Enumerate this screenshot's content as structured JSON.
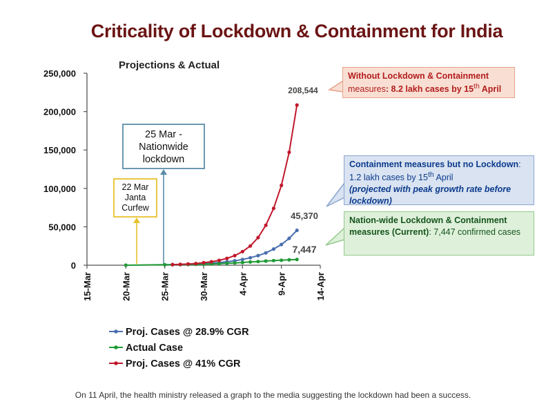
{
  "title": "Criticality of Lockdown & Containment for India",
  "caption": "On 11 April, the health ministry released a graph to the media suggesting the lockdown had been a success.",
  "colors": {
    "title": "#6b1414",
    "blue": "#4a6fb0",
    "green": "#1f9a35",
    "red": "#c0182b",
    "event_yellow": "#e6c22c",
    "event_blue": "#5a8ca8"
  },
  "events": [
    {
      "date_index": 7,
      "lines": [
        "22 Mar",
        "Janta",
        "Curfew"
      ]
    },
    {
      "date_index": 10,
      "lines": [
        "25 Mar -",
        "Nationwide",
        "lockdown"
      ]
    }
  ],
  "callouts": {
    "red": {
      "bold": "Without Lockdown & Containment",
      "text_a": "measures",
      "text_b": ": 8.2 lakh cases by 15",
      "sup": "th",
      "text_c": " April"
    },
    "blue": {
      "bold": "Containment measures but no Lockdown",
      "text_a": ": 1.2 lakh cases by 15",
      "sup": "th",
      "text_b": " April",
      "italic": "(projected with peak growth rate before lockdown)"
    },
    "green": {
      "bold": "Nation-wide Lockdown & Containment measures (Current)",
      "text_a": ": 7,447 confirmed cases"
    }
  },
  "chart_data": {
    "type": "line",
    "title": "Projections & Actual",
    "xlabel": "",
    "ylabel": "",
    "ylim": [
      0,
      250000
    ],
    "yticks": [
      0,
      50000,
      100000,
      150000,
      200000,
      250000
    ],
    "ytick_labels": [
      "0",
      "50,000",
      "100,000",
      "150,000",
      "200,000",
      "250,000"
    ],
    "xlim": [
      0,
      30
    ],
    "xtick_labels": [
      "15-Mar",
      "20-Mar",
      "25-Mar",
      "30-Mar",
      "4-Apr",
      "9-Apr",
      "14-Apr"
    ],
    "xtick_positions": [
      0,
      5,
      10,
      15,
      20,
      25,
      30
    ],
    "grid": false,
    "legend_position": "bottom-left",
    "end_labels": [
      "208,544",
      "45,370",
      "7,447"
    ],
    "series": [
      {
        "name": "Proj. Cases @ 28.9% CGR",
        "color": "#4a6fb0",
        "x": [
          10,
          11,
          12,
          13,
          14,
          15,
          16,
          17,
          18,
          19,
          20,
          21,
          22,
          23,
          24,
          25,
          26,
          27
        ],
        "values": [
          600,
          750,
          950,
          1200,
          1600,
          2100,
          2700,
          3500,
          4500,
          5800,
          7500,
          9700,
          12500,
          16000,
          21000,
          27000,
          35000,
          45370
        ]
      },
      {
        "name": "Actual Case",
        "color": "#1f9a35",
        "x": [
          5,
          10,
          11,
          12,
          13,
          14,
          15,
          16,
          17,
          18,
          19,
          20,
          21,
          22,
          23,
          24,
          25,
          26,
          27
        ],
        "values": [
          0,
          600,
          700,
          800,
          1000,
          1200,
          1400,
          1600,
          2000,
          2500,
          3000,
          3500,
          4200,
          4800,
          5400,
          6000,
          6500,
          7000,
          7447
        ]
      },
      {
        "name": "Proj. Cases @ 41% CGR",
        "color": "#c0182b",
        "x": [
          11,
          12,
          13,
          14,
          15,
          16,
          17,
          18,
          19,
          20,
          21,
          22,
          23,
          24,
          25,
          26,
          27
        ],
        "values": [
          800,
          1100,
          1600,
          2200,
          3200,
          4500,
          6300,
          8900,
          12500,
          17700,
          25000,
          36000,
          52000,
          74000,
          104000,
          147000,
          208544
        ]
      }
    ]
  }
}
